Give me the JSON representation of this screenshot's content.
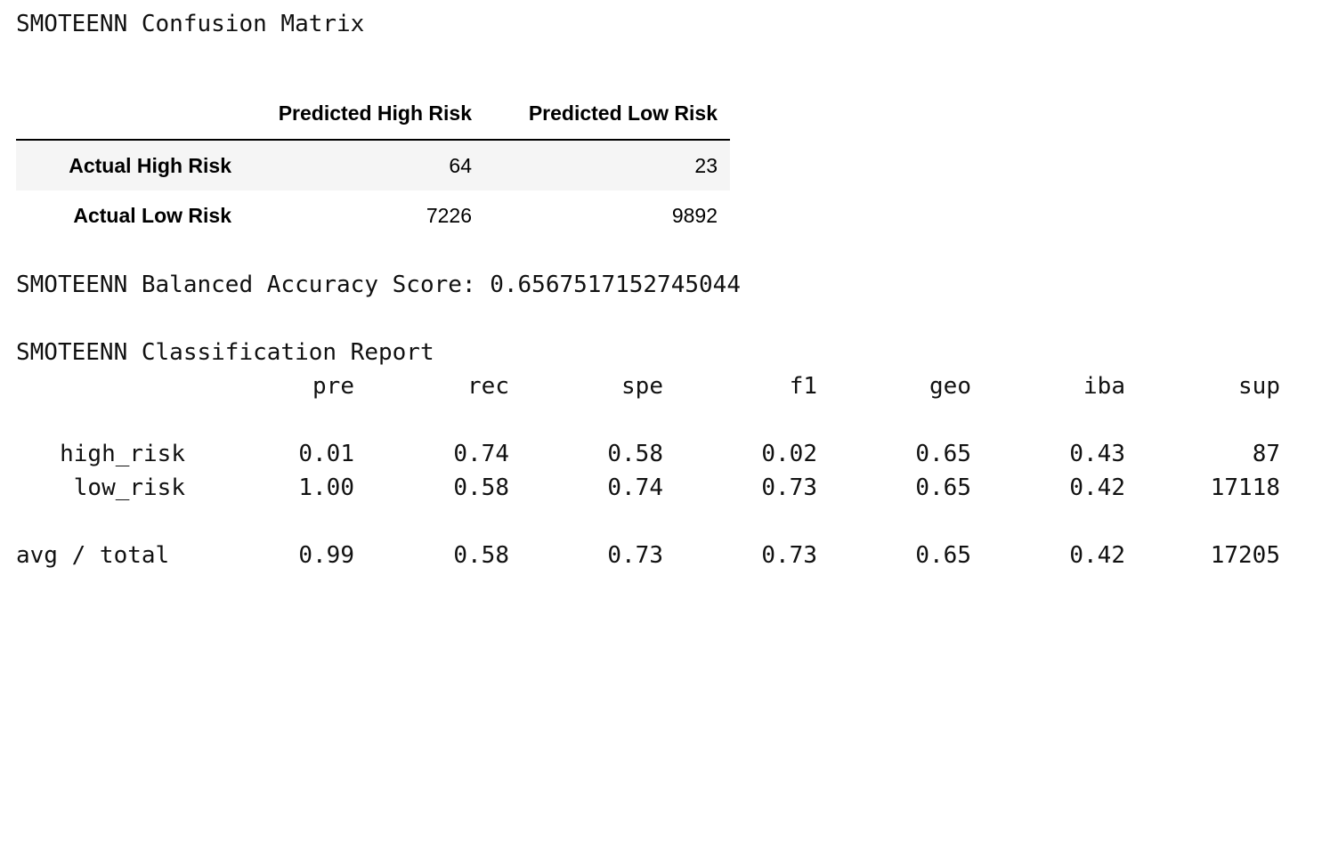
{
  "confusion_title": "SMOTEENN Confusion Matrix",
  "confusion_matrix": {
    "columns": [
      "Predicted High Risk",
      "Predicted Low Risk"
    ],
    "rows": [
      {
        "label": "Actual High Risk",
        "values": [
          "64",
          "23"
        ]
      },
      {
        "label": "Actual Low Risk",
        "values": [
          "7226",
          "9892"
        ]
      }
    ]
  },
  "accuracy_line": "SMOTEENN Balanced Accuracy Score: 0.6567517152745044",
  "report": {
    "title": "SMOTEENN Classification Report",
    "headers": [
      "pre",
      "rec",
      "spe",
      "f1",
      "geo",
      "iba",
      "sup"
    ],
    "rows": [
      {
        "label": "high_risk",
        "values": [
          "0.01",
          "0.74",
          "0.58",
          "0.02",
          "0.65",
          "0.43",
          "87"
        ]
      },
      {
        "label": "low_risk",
        "values": [
          "1.00",
          "0.58",
          "0.74",
          "0.73",
          "0.65",
          "0.42",
          "17118"
        ]
      }
    ],
    "total": {
      "label": "avg / total",
      "values": [
        "0.99",
        "0.58",
        "0.73",
        "0.73",
        "0.65",
        "0.42",
        "17205"
      ]
    }
  },
  "colors": {
    "stripe_row": "#f5f5f5",
    "text": "#111111",
    "header_rule": "#000000"
  }
}
